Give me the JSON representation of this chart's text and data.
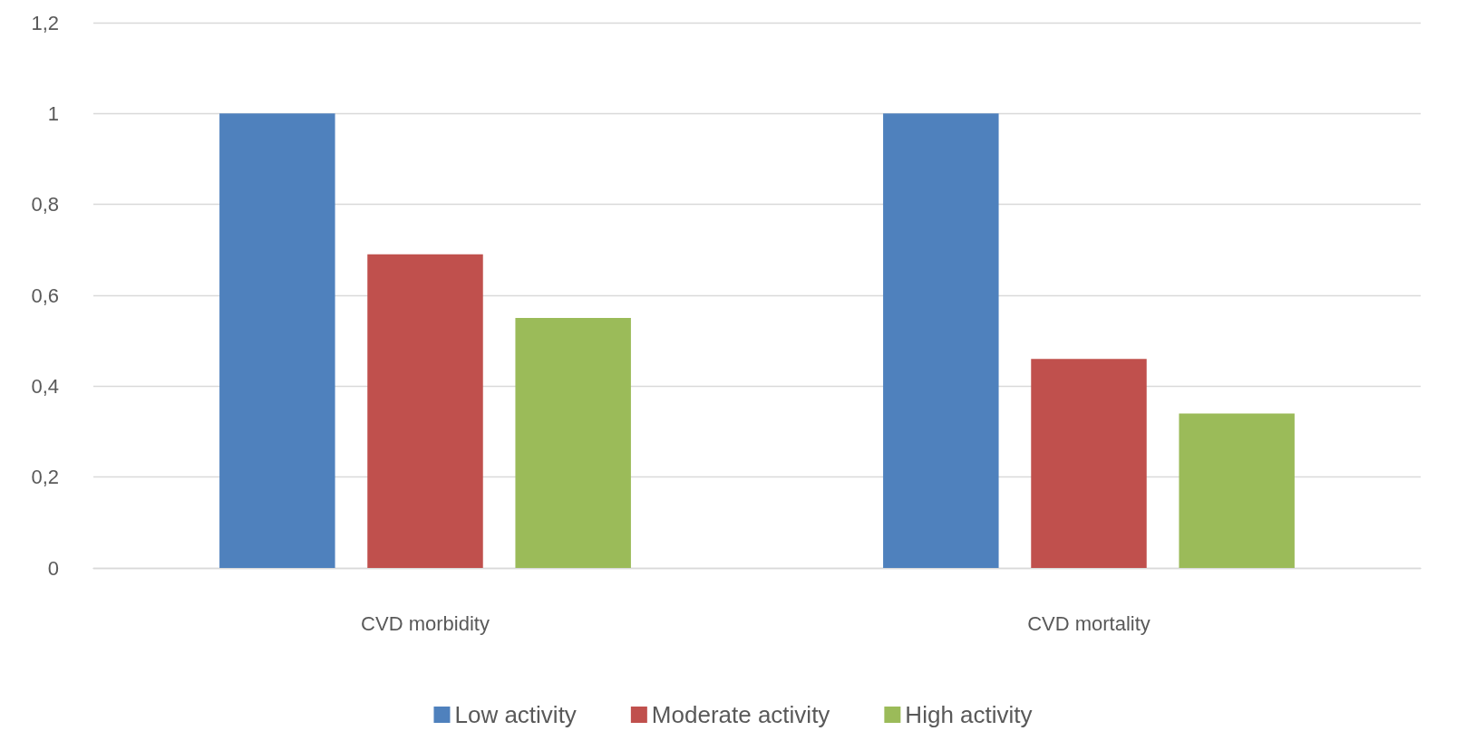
{
  "chart_data": {
    "type": "bar",
    "categories": [
      "CVD morbidity",
      "CVD mortality"
    ],
    "series": [
      {
        "name": "Low activity",
        "color": "#4f81bd",
        "values": [
          1,
          1
        ]
      },
      {
        "name": "Moderate activity",
        "color": "#c0504d",
        "values": [
          0.69,
          0.46
        ]
      },
      {
        "name": "High activity",
        "color": "#9bbb59",
        "values": [
          0.55,
          0.34
        ]
      }
    ],
    "ylim": [
      0,
      1.2
    ],
    "yticks": [
      0,
      {
        "value": 0.2,
        "label": "0,2"
      },
      {
        "value": 0.4,
        "label": "0,4"
      },
      {
        "value": 0.6,
        "label": "0,6"
      },
      {
        "value": 0.8,
        "label": "0,8"
      },
      1,
      {
        "value": 1.2,
        "label": "1,2"
      }
    ],
    "grid": "y",
    "legend": "bottom"
  }
}
